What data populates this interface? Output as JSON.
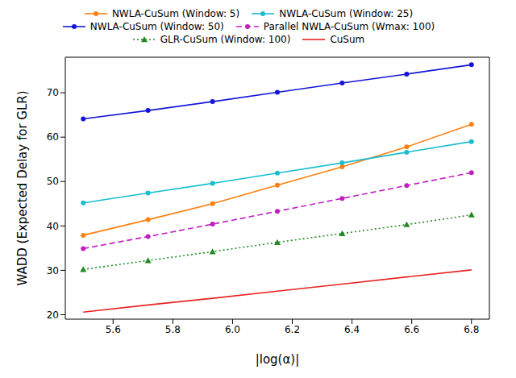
{
  "chart_data": {
    "type": "line",
    "x_label": "|log(α)|",
    "y_label": "WADD (Expected Delay for GLR)",
    "x": [
      5.5,
      5.717,
      5.933,
      6.15,
      6.367,
      6.583,
      6.8
    ],
    "xlim": [
      5.44,
      6.86
    ],
    "xticks": [
      5.6,
      5.8,
      {
        "value": 6,
        "label": "6.0"
      },
      6.2,
      6.4,
      6.6,
      6.8
    ],
    "ylim": [
      19,
      78
    ],
    "yticks": [
      20,
      30,
      40,
      50,
      60,
      70
    ],
    "grid": false,
    "legend": "top",
    "series": [
      {
        "name": "NWLA-CuSum (Window: 5)",
        "color": "#ff7f0e",
        "marker": "circle",
        "line_style": "solid",
        "values": [
          37.9,
          41.4,
          45.0,
          49.2,
          53.3,
          57.8,
          62.9
        ]
      },
      {
        "name": "NWLA-CuSum (Window: 25)",
        "color": "#17becf",
        "marker": "circle",
        "line_style": "solid",
        "values": [
          45.2,
          47.4,
          49.6,
          51.9,
          54.2,
          56.6,
          59.0
        ]
      },
      {
        "name": "NWLA-CuSum (Window: 50)",
        "color": "#1515d8",
        "marker": "circle",
        "line_style": "solid",
        "values": [
          64.1,
          66.0,
          68.0,
          70.1,
          72.2,
          74.2,
          76.3
        ]
      },
      {
        "name": "Parallel NWLA-CuSum (Wmax: 100)",
        "color": "#c020c0",
        "marker": "circle",
        "line_style": "dashed",
        "values": [
          34.9,
          37.6,
          40.4,
          43.3,
          46.2,
          49.1,
          52.0
        ]
      },
      {
        "name": "GLR-CuSum (Window: 100)",
        "color": "#228b22",
        "marker": "triangle",
        "line_style": "dotted",
        "values": [
          30.2,
          32.2,
          34.2,
          36.3,
          38.3,
          40.3,
          42.5
        ]
      },
      {
        "name": "CuSum",
        "color": "#e8231f",
        "marker": "none",
        "line_style": "solid",
        "values": [
          20.6,
          22.2,
          23.7,
          25.3,
          26.9,
          28.5,
          30.1
        ]
      }
    ]
  }
}
